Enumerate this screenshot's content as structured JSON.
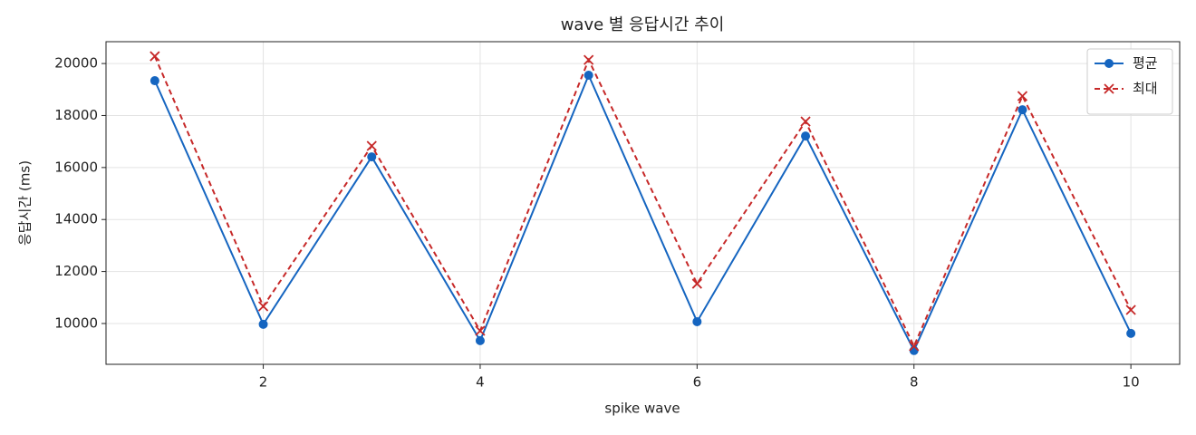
{
  "chart_data": {
    "type": "line",
    "title": "wave 별 응답시간 추이",
    "xlabel": "spike wave",
    "ylabel": "응답시간 (ms)",
    "x": [
      1,
      2,
      3,
      4,
      5,
      6,
      7,
      8,
      9,
      10
    ],
    "series": [
      {
        "name": "평균",
        "color": "#1565c0",
        "marker": "circle",
        "dash": false,
        "values": [
          19340,
          9970,
          16410,
          9340,
          19550,
          10070,
          17210,
          8960,
          18220,
          9620
        ]
      },
      {
        "name": "최대",
        "color": "#c62828",
        "marker": "x",
        "dash": true,
        "values": [
          20280,
          10660,
          16830,
          9720,
          20140,
          11530,
          17770,
          9130,
          18750,
          10520
        ]
      }
    ],
    "xlim": [
      0.55,
      10.45
    ],
    "xticks": [
      2,
      4,
      6,
      8,
      10
    ],
    "ylim": [
      8430,
      20840
    ],
    "yticks": [
      10000,
      12000,
      14000,
      16000,
      18000,
      20000
    ],
    "grid": true,
    "legend": "upper-right"
  }
}
